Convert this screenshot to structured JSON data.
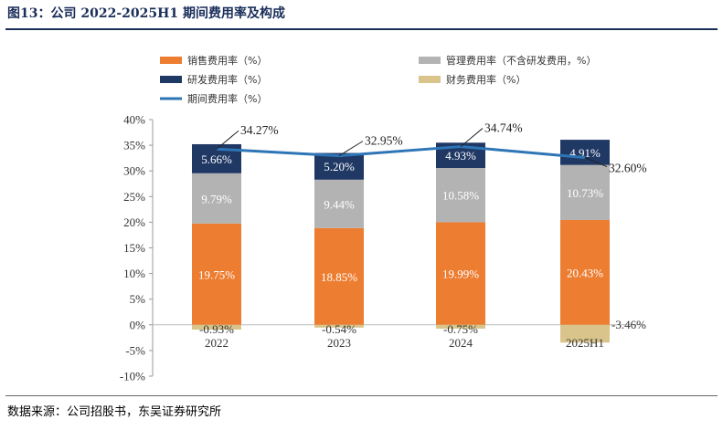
{
  "title": "图13：公司 2022-2025H1 期间费用率及构成",
  "source": "数据来源：公司招股书，东吴证券研究所",
  "chart_data": {
    "type": "bar",
    "stacked": true,
    "categories": [
      "2022",
      "2023",
      "2024",
      "2025H1"
    ],
    "ylim": [
      -10,
      40
    ],
    "yticks": [
      -10,
      -5,
      0,
      5,
      10,
      15,
      20,
      25,
      30,
      35,
      40
    ],
    "ytick_labels": [
      "-10%",
      "-5%",
      "0%",
      "5%",
      "10%",
      "15%",
      "20%",
      "25%",
      "30%",
      "35%",
      "40%"
    ],
    "series": [
      {
        "name": "销售费用率（%）",
        "kind": "bar",
        "color": "#ed7d31",
        "label_color": "#ffffff",
        "values": [
          19.75,
          18.85,
          19.99,
          20.43
        ],
        "labels": [
          "19.75%",
          "18.85%",
          "19.99%",
          "20.43%"
        ]
      },
      {
        "name": "管理费用率（不含研发费用，%）",
        "kind": "bar",
        "color": "#b3b3b3",
        "label_color": "#ffffff",
        "values": [
          9.79,
          9.44,
          10.58,
          10.73
        ],
        "labels": [
          "9.79%",
          "9.44%",
          "10.58%",
          "10.73%"
        ]
      },
      {
        "name": "研发费用率（%）",
        "kind": "bar",
        "color": "#1f3864",
        "label_color": "#ffffff",
        "values": [
          5.66,
          5.2,
          4.93,
          4.91
        ],
        "labels": [
          "5.66%",
          "5.20%",
          "4.93%",
          "4.91%"
        ]
      },
      {
        "name": "财务费用率（%）",
        "kind": "bar",
        "color": "#d9c58b",
        "label_color": "#333333",
        "values": [
          -0.93,
          -0.54,
          -0.75,
          -3.46
        ],
        "labels": [
          "-0.93%",
          "-0.54%",
          "-0.75%",
          "-3.46%"
        ]
      },
      {
        "name": "期间费用率（%）",
        "kind": "line",
        "color": "#2e75b6",
        "values": [
          34.27,
          32.95,
          34.74,
          32.6
        ],
        "labels": [
          "34.27%",
          "32.95%",
          "34.74%",
          "32.60%"
        ]
      }
    ],
    "legend": [
      {
        "series": 0,
        "name": "销售费用率（%）",
        "color": "#ed7d31",
        "kind": "bar"
      },
      {
        "series": 1,
        "name": "管理费用率（不含研发费用，%）",
        "color": "#b3b3b3",
        "kind": "bar"
      },
      {
        "series": 2,
        "name": "研发费用率（%）",
        "color": "#1f3864",
        "kind": "bar"
      },
      {
        "series": 3,
        "name": "财务费用率（%）",
        "color": "#d9c58b",
        "kind": "bar"
      },
      {
        "series": 4,
        "name": "期间费用率（%）",
        "color": "#2e75b6",
        "kind": "line"
      }
    ],
    "legend_position": "top"
  }
}
